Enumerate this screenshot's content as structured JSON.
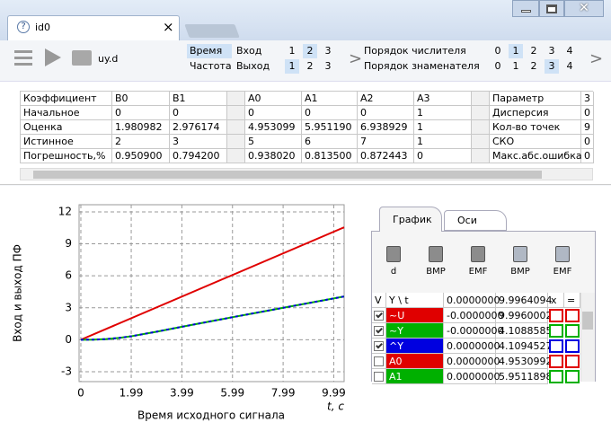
{
  "window": {
    "tab": "id0",
    "tab_close": "×"
  },
  "toolbar": {
    "file": "uy.d",
    "modes": [
      "Время",
      "Частота"
    ],
    "active_mode": 0,
    "channels": [
      {
        "label": "Вход",
        "options": [
          1,
          2,
          3
        ],
        "selected": 1
      },
      {
        "label": "Выход",
        "options": [
          1,
          2,
          3
        ],
        "selected": 0
      }
    ],
    "orders": [
      {
        "label": "Порядок числителя",
        "options": [
          0,
          1,
          2,
          3,
          4
        ],
        "selected": 1
      },
      {
        "label": "Порядок знаменателя",
        "options": [
          0,
          1,
          2,
          3,
          4
        ],
        "selected": 3
      }
    ]
  },
  "table": {
    "header": [
      "Коэффициент",
      "B0",
      "B1",
      "A0",
      "A1",
      "A2",
      "A3",
      "Параметр",
      "3"
    ],
    "rows": [
      [
        "Начальное",
        "0",
        "0",
        "0",
        "0",
        "0",
        "1",
        "Дисперсия",
        "0"
      ],
      [
        "Оценка",
        "1.980982",
        "2.976174",
        "4.953099",
        "5.951190",
        "6.938929",
        "1",
        "Кол-во точек",
        "9"
      ],
      [
        "Истинное",
        "2",
        "3",
        "5",
        "6",
        "7",
        "1",
        "СКО",
        "0"
      ],
      [
        "Погрешность,%",
        "0.950900",
        "0.794200",
        "0.938020",
        "0.813500",
        "0.872443",
        "0",
        "Макс.абс.ошибка",
        "0"
      ]
    ]
  },
  "chart_data": {
    "type": "line",
    "xlabel": "Время исходного сигнала",
    "xunit": "t, c",
    "ylabel": "Вход и выход ПФ",
    "xlim": [
      -0.07,
      10.4
    ],
    "ylim": [
      -3.93,
      12.67
    ],
    "xticks": [
      0,
      1.99,
      3.99,
      5.99,
      7.99,
      9.99
    ],
    "yticks": [
      -3,
      0,
      3,
      6,
      9,
      12
    ],
    "grid": true,
    "series": [
      {
        "name": "~U",
        "color": "#e00000",
        "x": [
          0,
          10.4
        ],
        "y": [
          0,
          10.55
        ]
      },
      {
        "name": "~Y",
        "color": "#00b000",
        "x": [
          0,
          0.5,
          1,
          1.5,
          2,
          3,
          4,
          5,
          6,
          7,
          8,
          9,
          10.4
        ],
        "y": [
          0,
          0.01,
          0.06,
          0.17,
          0.33,
          0.76,
          1.22,
          1.67,
          2.12,
          2.56,
          3.0,
          3.44,
          4.06
        ]
      },
      {
        "name": "^Y",
        "color": "#0000e0",
        "dashed": true,
        "x": [
          0,
          0.5,
          1,
          1.5,
          2,
          3,
          4,
          5,
          6,
          7,
          8,
          9,
          10.4
        ],
        "y": [
          0,
          0.01,
          0.06,
          0.17,
          0.33,
          0.76,
          1.22,
          1.67,
          2.12,
          2.56,
          3.0,
          3.44,
          4.06
        ]
      }
    ]
  },
  "plot_panel": {
    "tabs": [
      "График",
      "Оси"
    ],
    "active_tab": 0,
    "buttons": [
      "d",
      "BMP",
      "EMF",
      "BMP",
      "EMF"
    ],
    "grid": {
      "header": [
        "V",
        "Y \\ t",
        "0.0000000",
        "9.9964094",
        "x",
        "="
      ],
      "extra_rows": [
        {
          "name": "A0",
          "color": "#e00000"
        },
        {
          "name": "A1",
          "color": "#00b000"
        }
      ],
      "checked": [
        true,
        true,
        true,
        false,
        false
      ],
      "values": [
        [
          "-0.0000000",
          "9.9960002"
        ],
        [
          "-0.0000000",
          "4.1088585"
        ],
        [
          "0.0000000",
          "4.1094527"
        ],
        [
          "0.0000000",
          "4.9530992"
        ],
        [
          "0.0000000",
          "5.9511898"
        ]
      ]
    }
  }
}
